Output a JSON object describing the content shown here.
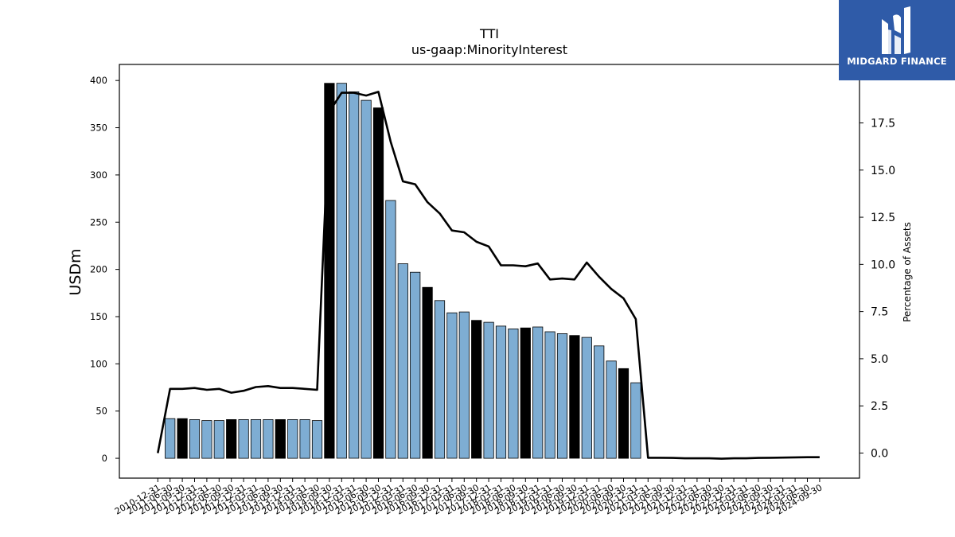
{
  "chart_data": {
    "type": "bar",
    "title": "TTI",
    "subtitle": "us-gaap:MinorityInterest",
    "ylabel": "USDm",
    "y2label": "Percentage of Assets",
    "ylim": [
      -21,
      417
    ],
    "y2lim": [
      -1.33,
      20.6
    ],
    "yticks": [
      0,
      50,
      100,
      150,
      200,
      250,
      300,
      350,
      400
    ],
    "y2ticks": [
      "0.0",
      "2.5",
      "5.0",
      "7.5",
      "10.0",
      "12.5",
      "15.0",
      "17.5"
    ],
    "grid": false,
    "categories": [
      "2010-12-31",
      "2011-06-30",
      "2011-09-30",
      "2011-12-31",
      "2012-03-31",
      "2012-06-30",
      "2012-09-30",
      "2012-12-31",
      "2013-03-31",
      "2013-06-30",
      "2013-09-30",
      "2013-12-31",
      "2014-03-31",
      "2014-06-30",
      "2014-09-30",
      "2014-12-31",
      "2015-03-31",
      "2015-06-30",
      "2015-09-30",
      "2015-12-31",
      "2016-03-31",
      "2016-06-30",
      "2016-09-30",
      "2016-12-31",
      "2017-03-31",
      "2017-06-30",
      "2017-09-30",
      "2017-12-31",
      "2018-03-31",
      "2018-06-30",
      "2018-09-30",
      "2018-12-31",
      "2019-03-31",
      "2019-06-30",
      "2019-09-30",
      "2019-12-31",
      "2020-03-31",
      "2020-06-30",
      "2020-09-30",
      "2020-12-31",
      "2021-03-31",
      "2021-06-30",
      "2021-09-30",
      "2021-12-31",
      "2022-03-31",
      "2022-06-30",
      "2022-09-30",
      "2022-12-31",
      "2023-03-31",
      "2023-06-30",
      "2023-09-30",
      "2023-12-31",
      "2024-03-31",
      "2024-06-30",
      "2024-09-30"
    ],
    "xticklabels_shown": [
      "2010-12-31",
      "2011-06-30",
      "2011-09-30",
      "2011-12-31",
      "2012-03-31",
      "2012-06-30",
      "2012-09-30",
      "2012-12-31",
      "2013-03-31",
      "2013-06-30",
      "2013-09-30",
      "2013-12-31",
      "2014-03-31",
      "2014-06-30",
      "2014-09-30",
      "2014-12-31",
      "2015-03-31",
      "2015-06-30",
      "2015-09-30",
      "2015-12-31",
      "2016-03-31",
      "2016-06-30",
      "2016-09-30",
      "2016-12-31",
      "2017-03-31",
      "2017-06-30",
      "2017-09-30",
      "2017-12-31",
      "2018-03-31",
      "2018-06-30",
      "2018-09-30",
      "2018-12-31",
      "2019-03-31",
      "2019-06-30",
      "2019-09-30",
      "2019-12-31",
      "2020-03-31",
      "2020-06-30",
      "2020-09-30",
      "2020-12-31",
      "2021-03-31",
      "2021-06-30",
      "2021-09-30",
      "2021-12-31",
      "2022-03-31",
      "2022-06-30",
      "2022-09-30",
      "2022-12-31",
      "2023-03-31",
      "2023-06-30",
      "2023-09-30",
      "2023-12-31",
      "2024-03-31",
      "2024-06-30",
      "2024-09-30"
    ],
    "series": [
      {
        "kind": "bar",
        "axis": "left",
        "values": [
          0,
          42,
          42,
          41,
          40,
          40,
          41,
          41,
          41,
          41,
          41,
          41,
          41,
          40,
          397,
          397,
          388,
          379,
          371,
          273,
          206,
          197,
          181,
          167,
          154,
          155,
          146,
          144,
          140,
          137,
          138,
          139,
          134,
          132,
          130,
          128,
          119,
          103,
          95,
          80,
          0,
          0,
          0,
          0,
          0,
          0,
          0,
          0,
          0,
          0,
          0,
          0,
          0,
          0,
          0
        ],
        "highlight_q4": true
      },
      {
        "kind": "line",
        "axis": "right",
        "values": [
          0.0,
          3.4,
          3.4,
          3.45,
          3.35,
          3.4,
          3.2,
          3.3,
          3.5,
          3.55,
          3.45,
          3.45,
          3.4,
          3.35,
          18.1,
          19.1,
          19.1,
          18.95,
          19.15,
          16.5,
          14.4,
          14.25,
          13.3,
          12.7,
          11.8,
          11.7,
          11.2,
          10.95,
          9.95,
          9.95,
          9.9,
          10.05,
          9.2,
          9.25,
          9.2,
          10.1,
          9.35,
          8.7,
          8.2,
          7.1,
          -0.25,
          -0.25,
          -0.26,
          -0.28,
          -0.28,
          -0.28,
          -0.3,
          -0.28,
          -0.28,
          -0.26,
          -0.25,
          -0.24,
          -0.23,
          -0.22,
          -0.22
        ]
      }
    ],
    "colors": {
      "bar": "#7eadd3",
      "bar_highlight": "#000000",
      "line": "#000000",
      "axis": "#000000"
    }
  },
  "brand": {
    "name": "MIDGARD FINANCE",
    "color": "#2f5ba8"
  }
}
